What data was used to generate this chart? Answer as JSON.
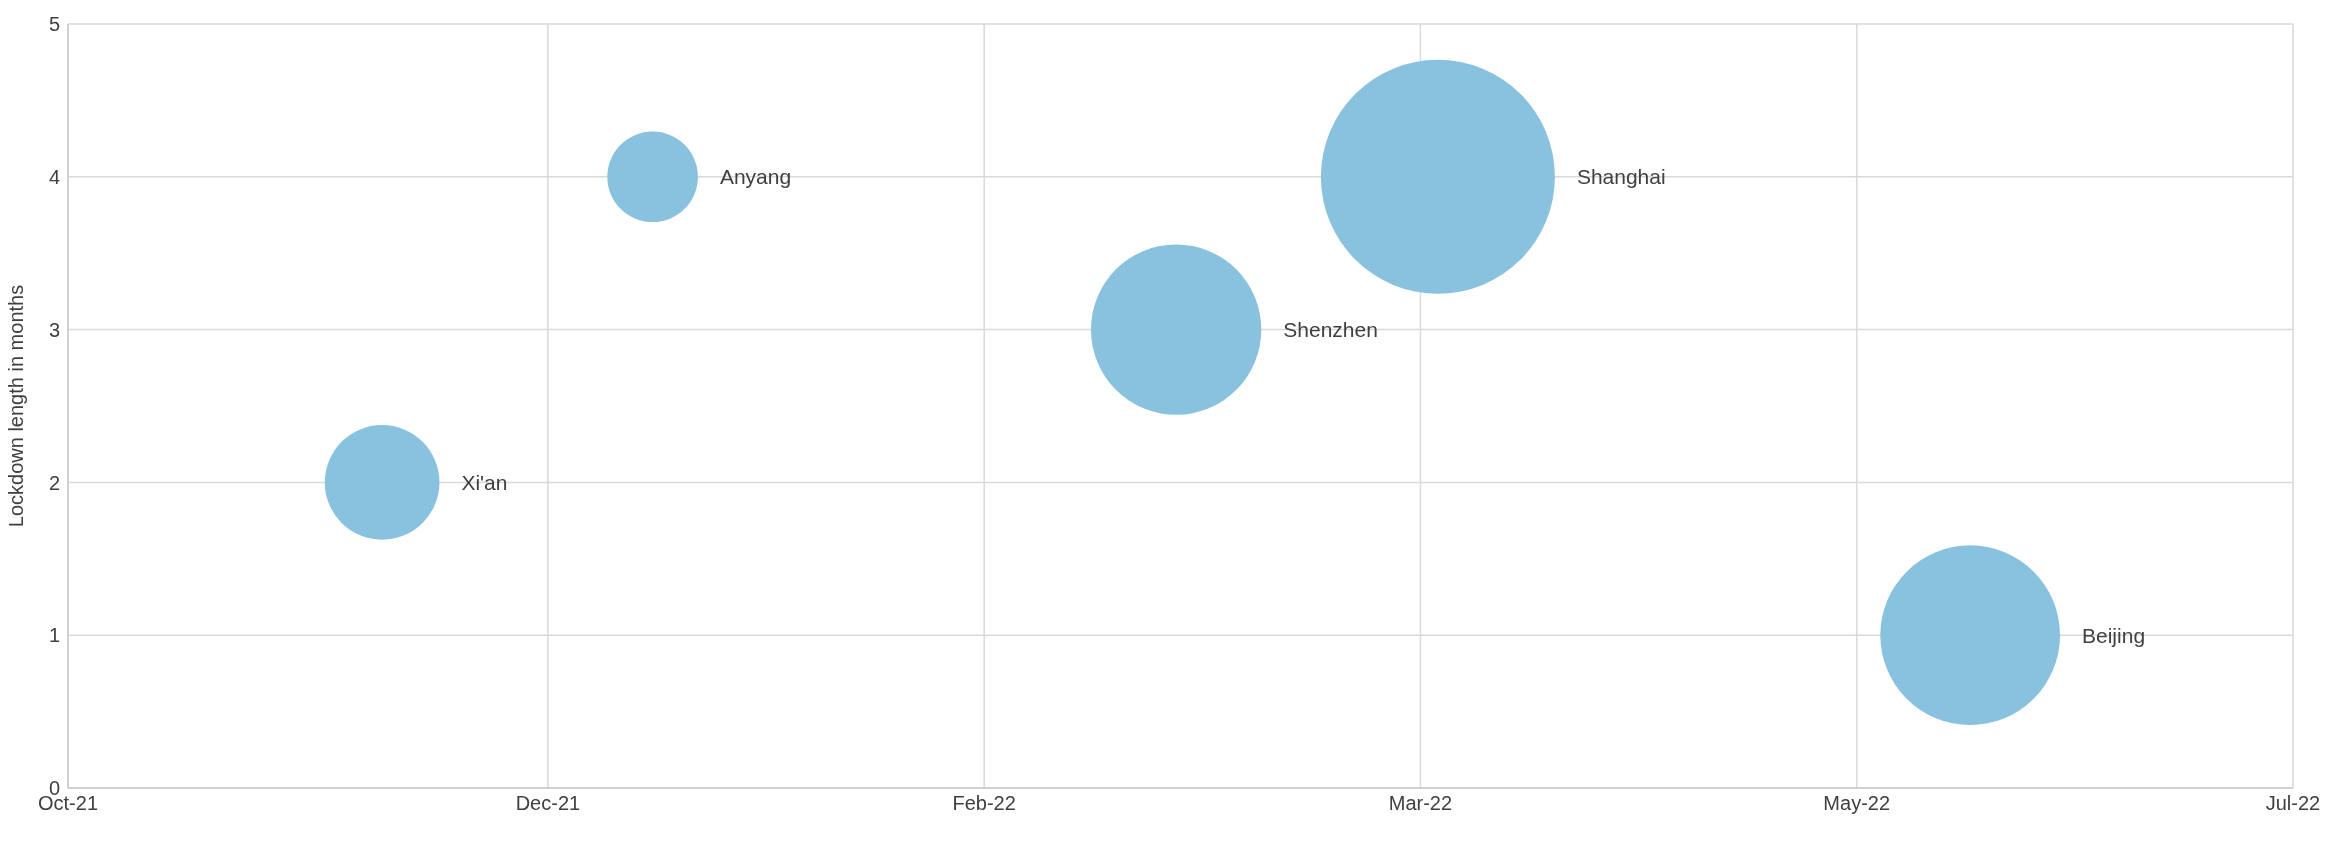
{
  "chart_data": {
    "type": "bubble",
    "ylabel": "Lockdown length in months",
    "series": [
      {
        "name": "Xi'an",
        "color": "#89c2df",
        "x": [
          "2021-12-01"
        ],
        "values": [
          2
        ],
        "sizes": [
          0.24
        ]
      },
      {
        "name": "Anyang",
        "color": "#89c2df",
        "x": [
          "2022-01-01"
        ],
        "values": [
          4
        ],
        "sizes": [
          0.15
        ]
      },
      {
        "name": "Shenzhen",
        "color": "#89c2df",
        "x": [
          "2022-03-02"
        ],
        "values": [
          3
        ],
        "sizes": [
          0.53
        ]
      },
      {
        "name": "Shanghai",
        "color": "#89c2df",
        "x": [
          "2022-04-01"
        ],
        "values": [
          4
        ],
        "sizes": [
          1
        ]
      },
      {
        "name": "Beijing",
        "color": "#89c2df",
        "x": [
          "2022-06-01"
        ],
        "values": [
          1
        ],
        "sizes": [
          0.59
        ]
      }
    ],
    "xlim": [
      "2021-10-26",
      "2022-07-08"
    ],
    "xticks": [
      {
        "value": "2021-10-26",
        "label": "Oct-21"
      },
      {
        "value": "2021-12-20",
        "label": "Dec-21"
      },
      {
        "value": "2022-02-08",
        "label": "Feb-22"
      },
      {
        "value": "2022-03-30",
        "label": "Mar-22"
      },
      {
        "value": "2022-05-19",
        "label": "May-22"
      },
      {
        "value": "2022-07-08",
        "label": "Jul-22"
      }
    ],
    "ylim": [
      0,
      5
    ],
    "yticks": [
      0,
      1,
      2,
      3,
      4,
      5
    ],
    "grid": true,
    "marker": "circle"
  }
}
